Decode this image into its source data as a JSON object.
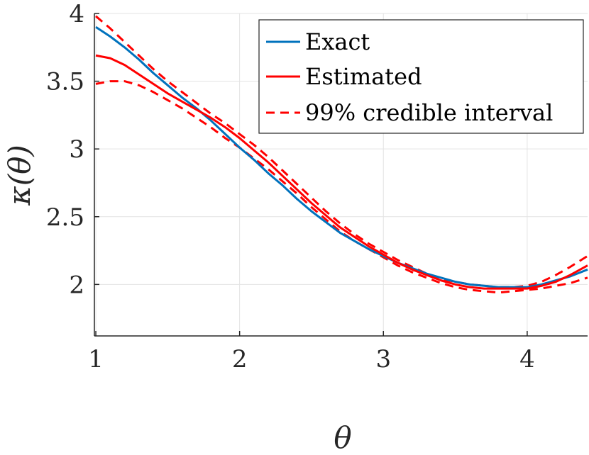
{
  "chart_data": {
    "type": "line",
    "xlabel": "θ",
    "ylabel": "κ(θ)",
    "xlim": [
      0.99,
      4.42
    ],
    "ylim": [
      1.62,
      4.0
    ],
    "xticks": [
      1,
      2,
      3,
      4
    ],
    "yticks": [
      2,
      2.5,
      3,
      3.5,
      4
    ],
    "xtick_labels": [
      "1",
      "2",
      "3",
      "4"
    ],
    "ytick_labels": [
      "2",
      "2.5",
      "3",
      "3.5",
      "4"
    ],
    "grid": true,
    "legend_position": "top-right",
    "colors": {
      "exact": "#0072BD",
      "estimated": "#FF0000"
    },
    "series": [
      {
        "name": "Exact",
        "style": "solid",
        "color": "#0072BD",
        "x": [
          1.0,
          1.1,
          1.2,
          1.3,
          1.4,
          1.5,
          1.6,
          1.7,
          1.8,
          1.9,
          2.0,
          2.1,
          2.2,
          2.3,
          2.4,
          2.5,
          2.6,
          2.7,
          2.8,
          2.9,
          3.0,
          3.1,
          3.2,
          3.3,
          3.4,
          3.5,
          3.6,
          3.7,
          3.8,
          3.9,
          4.0,
          4.1,
          4.2,
          4.3,
          4.42
        ],
        "y": [
          3.9,
          3.83,
          3.75,
          3.66,
          3.56,
          3.47,
          3.38,
          3.3,
          3.21,
          3.11,
          3.01,
          2.92,
          2.82,
          2.73,
          2.63,
          2.54,
          2.46,
          2.38,
          2.32,
          2.26,
          2.21,
          2.16,
          2.12,
          2.08,
          2.05,
          2.02,
          2.0,
          1.99,
          1.98,
          1.98,
          1.98,
          2.0,
          2.03,
          2.06,
          2.11
        ]
      },
      {
        "name": "Estimated",
        "style": "solid",
        "color": "#FF0000",
        "x": [
          1.0,
          1.1,
          1.2,
          1.3,
          1.4,
          1.5,
          1.6,
          1.7,
          1.8,
          1.9,
          2.0,
          2.1,
          2.2,
          2.3,
          2.4,
          2.5,
          2.6,
          2.7,
          2.8,
          2.9,
          3.0,
          3.1,
          3.2,
          3.3,
          3.4,
          3.5,
          3.6,
          3.7,
          3.8,
          3.9,
          4.0,
          4.1,
          4.2,
          4.3,
          4.42
        ],
        "y": [
          3.69,
          3.67,
          3.62,
          3.55,
          3.48,
          3.41,
          3.35,
          3.29,
          3.23,
          3.16,
          3.08,
          2.99,
          2.9,
          2.8,
          2.7,
          2.6,
          2.51,
          2.42,
          2.35,
          2.28,
          2.22,
          2.16,
          2.11,
          2.07,
          2.03,
          2.0,
          1.98,
          1.97,
          1.97,
          1.97,
          1.97,
          1.99,
          2.02,
          2.07,
          2.14
        ]
      },
      {
        "name": "99% credible interval",
        "style": "dashed",
        "color": "#FF0000",
        "x": [
          1.0,
          1.1,
          1.2,
          1.3,
          1.4,
          1.5,
          1.6,
          1.7,
          1.8,
          1.9,
          2.0,
          2.1,
          2.2,
          2.3,
          2.4,
          2.5,
          2.6,
          2.7,
          2.8,
          2.9,
          3.0,
          3.1,
          3.2,
          3.3,
          3.4,
          3.5,
          3.6,
          3.7,
          3.8,
          3.9,
          4.0,
          4.1,
          4.2,
          4.3,
          4.42
        ],
        "y": [
          3.98,
          3.89,
          3.79,
          3.69,
          3.59,
          3.5,
          3.42,
          3.34,
          3.26,
          3.19,
          3.11,
          3.03,
          2.94,
          2.84,
          2.74,
          2.64,
          2.54,
          2.45,
          2.37,
          2.3,
          2.24,
          2.18,
          2.13,
          2.08,
          2.04,
          2.02,
          2.0,
          1.99,
          1.98,
          1.98,
          1.99,
          2.02,
          2.07,
          2.13,
          2.21
        ]
      },
      {
        "name": "",
        "style": "dashed",
        "color": "#FF0000",
        "x": [
          1.0,
          1.1,
          1.2,
          1.3,
          1.4,
          1.5,
          1.6,
          1.7,
          1.8,
          1.9,
          2.0,
          2.1,
          2.2,
          2.3,
          2.4,
          2.5,
          2.6,
          2.7,
          2.8,
          2.9,
          3.0,
          3.1,
          3.2,
          3.3,
          3.4,
          3.5,
          3.6,
          3.7,
          3.8,
          3.9,
          4.0,
          4.1,
          4.2,
          4.3,
          4.42
        ],
        "y": [
          3.48,
          3.5,
          3.5,
          3.47,
          3.42,
          3.36,
          3.3,
          3.23,
          3.16,
          3.08,
          3.01,
          2.93,
          2.85,
          2.76,
          2.67,
          2.57,
          2.48,
          2.39,
          2.32,
          2.26,
          2.2,
          2.14,
          2.09,
          2.05,
          2.01,
          1.98,
          1.96,
          1.95,
          1.94,
          1.95,
          1.96,
          1.97,
          1.99,
          2.01,
          2.05
        ]
      }
    ]
  }
}
